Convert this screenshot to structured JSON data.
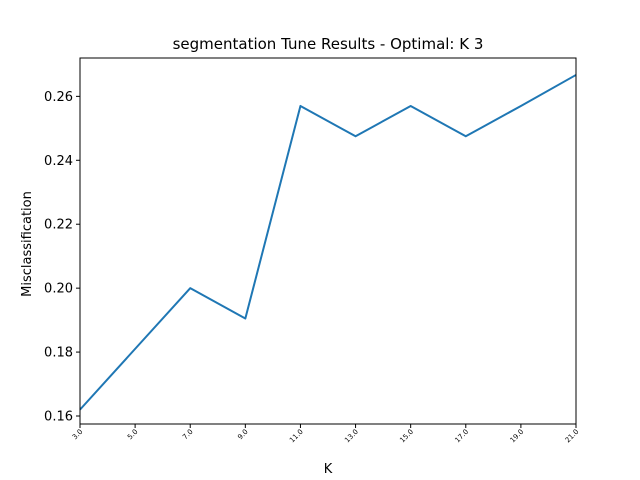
{
  "chart_data": {
    "type": "line",
    "title": "segmentation Tune Results - Optimal: K 3",
    "xlabel": "K",
    "ylabel": "Misclassification",
    "x": [
      3,
      5,
      7,
      9,
      11,
      13,
      15,
      17,
      19,
      21
    ],
    "xticklabels": [
      "3.0",
      "5.0",
      "7.0",
      "9.0",
      "11.0",
      "13.0",
      "15.0",
      "17.0",
      "19.0",
      "21.0"
    ],
    "series": [
      {
        "values": [
          0.162,
          0.181,
          0.2,
          0.1905,
          0.257,
          0.2475,
          0.257,
          0.2475,
          0.257,
          0.2667
        ],
        "color": "#1f77b4"
      }
    ],
    "xlim": [
      3,
      21
    ],
    "ylim": [
      0.1575,
      0.272
    ],
    "yticks": [
      0.16,
      0.18,
      0.2,
      0.22,
      0.24,
      0.26
    ],
    "yticklabels": [
      "0.16",
      "0.18",
      "0.20",
      "0.22",
      "0.24",
      "0.26"
    ],
    "grid": false
  }
}
